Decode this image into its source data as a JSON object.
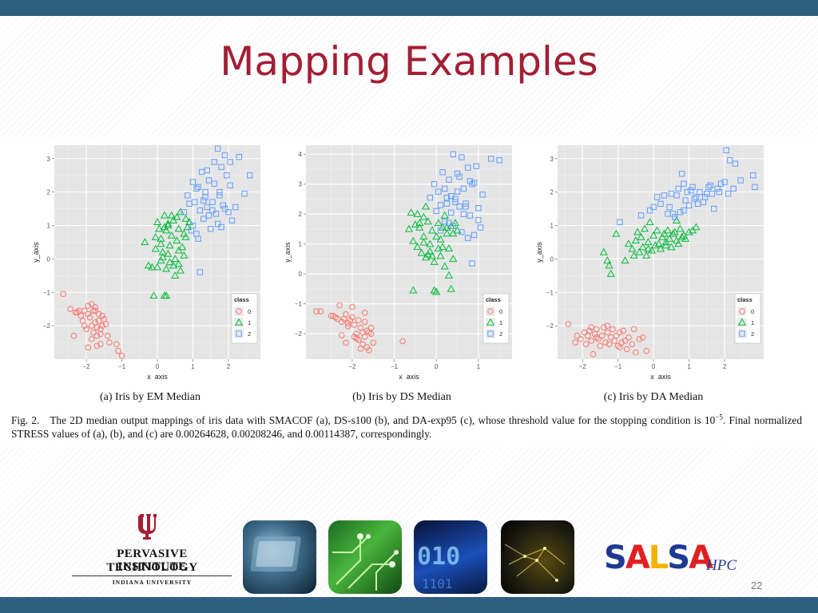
{
  "slide": {
    "title": "Mapping Examples",
    "page_number": "22",
    "figure_caption_prefix": "Fig. 2.",
    "figure_caption_part1": "The 2D median output mappings of iris data with SMACOF (a), DS-s100 (b), and DA-exp95 (c), whose threshold value for the stopping condition is 10",
    "figure_caption_exponent": "−5",
    "figure_caption_part2": ". Final normalized STRESS values of (a), (b), and (c) are 0.00264628, 0.00208246, and 0.00114387, correspondingly."
  },
  "logos": {
    "pti_line1": "PERVASIVE TECHNOLOGY",
    "pti_line2": "INSTITUTE",
    "pti_line3": "INDIANA UNIVERSITY",
    "salsa_letters": [
      "S",
      "A",
      "L",
      "S",
      "A"
    ],
    "salsa_suffix": "HPC",
    "colors": {
      "iu_crimson": "#a31f34",
      "salsa_blue": "#1f3a93",
      "salsa_red": "#e02020",
      "salsa_yellow": "#f2b200"
    }
  },
  "theme": {
    "title_color": "#a31f34",
    "bar_color": "#2e5f80",
    "class_colors": [
      "#f8766d",
      "#00ba38",
      "#619cff"
    ]
  },
  "chart_data": [
    {
      "type": "scatter",
      "title": "",
      "caption": "(a) Iris by EM Median",
      "xlabel": "x_axis",
      "ylabel": "y_axis",
      "xlim": [
        -2.9,
        2.9
      ],
      "ylim": [
        -3.0,
        3.4
      ],
      "xticks": [
        "-2",
        "-1",
        "0",
        "1",
        "2"
      ],
      "yticks": [
        "-2",
        "-1",
        "0",
        "1",
        "2",
        "3"
      ],
      "legend": {
        "title": "class",
        "placement": "right-bottom",
        "labels": [
          "0",
          "1",
          "2"
        ],
        "shapes": [
          "circle",
          "triangle",
          "square"
        ]
      },
      "grid": true,
      "series": [
        {
          "name": "0",
          "shape": "circle",
          "color": "#f8766d",
          "x": [
            -2.65,
            -2.45,
            -2.35,
            -2.25,
            -2.2,
            -2.15,
            -2.1,
            -2.05,
            -2.0,
            -1.95,
            -1.95,
            -1.9,
            -1.85,
            -1.85,
            -1.8,
            -1.8,
            -1.75,
            -1.75,
            -1.7,
            -1.7,
            -1.65,
            -1.65,
            -1.6,
            -1.6,
            -1.55,
            -1.55,
            -1.5,
            -1.45,
            -1.4,
            -1.35,
            -1.95,
            -2.3,
            -1.85,
            -1.7,
            -1.15,
            -1.0,
            -1.1,
            -2.05,
            -1.75,
            -1.6
          ],
          "y": [
            -1.05,
            -1.5,
            -2.3,
            -1.6,
            -1.55,
            -1.7,
            -1.85,
            -1.55,
            -2.1,
            -1.65,
            -1.4,
            -1.75,
            -2.0,
            -1.35,
            -1.55,
            -2.2,
            -1.9,
            -1.45,
            -2.05,
            -2.3,
            -1.65,
            -1.85,
            -2.1,
            -2.55,
            -1.7,
            -2.0,
            -1.8,
            -1.95,
            -2.3,
            -2.5,
            -2.65,
            -1.6,
            -2.4,
            -2.6,
            -2.55,
            -2.9,
            -2.75,
            -2.0,
            -1.55,
            -2.25
          ]
        },
        {
          "name": "1",
          "shape": "triangle",
          "color": "#00ba38",
          "x": [
            -0.35,
            -0.25,
            -0.15,
            -0.05,
            0.0,
            0.05,
            0.1,
            0.1,
            0.15,
            0.2,
            0.25,
            0.25,
            0.3,
            0.35,
            0.4,
            0.45,
            0.5,
            0.55,
            0.6,
            0.6,
            0.65,
            0.7,
            0.75,
            0.8,
            0.85,
            0.9,
            -0.1,
            0.0,
            0.2,
            0.35,
            0.15,
            0.5,
            -0.05,
            0.3,
            0.65,
            0.4,
            0.55,
            0.75,
            0.2,
            0.45,
            0.1,
            0.6,
            0.3,
            0.8,
            0.25
          ],
          "y": [
            0.5,
            -0.2,
            -0.25,
            0.3,
            1.1,
            0.9,
            0.6,
            -0.05,
            0.2,
            1.3,
            0.85,
            -0.3,
            1.05,
            0.4,
            0.7,
            1.15,
            0.0,
            0.55,
            -0.15,
            0.9,
            1.4,
            0.35,
            0.75,
            1.2,
            0.95,
            1.1,
            -1.1,
            -0.25,
            -1.1,
            -0.1,
            0.05,
            -0.5,
            0.65,
            1.0,
            -0.35,
            1.3,
            1.25,
            0.1,
            0.95,
            -0.2,
            0.45,
            0.25,
            0.15,
            0.65,
            -1.1
          ]
        },
        {
          "name": "2",
          "shape": "square",
          "color": "#619cff",
          "x": [
            0.75,
            0.85,
            0.95,
            1.0,
            1.05,
            1.1,
            1.15,
            1.2,
            1.25,
            1.3,
            1.35,
            1.4,
            1.45,
            1.5,
            1.55,
            1.6,
            1.65,
            1.7,
            1.75,
            1.8,
            1.85,
            1.9,
            1.95,
            2.0,
            2.05,
            2.1,
            2.2,
            2.3,
            2.45,
            2.6,
            1.0,
            1.15,
            1.3,
            1.45,
            1.6,
            1.75,
            1.9,
            2.05,
            1.2,
            1.4,
            1.55,
            1.7,
            0.9,
            1.1,
            1.35,
            1.8
          ],
          "y": [
            1.4,
            1.9,
            0.85,
            2.3,
            1.7,
            2.1,
            0.6,
            1.45,
            2.6,
            1.2,
            2.0,
            1.55,
            2.35,
            0.9,
            1.7,
            2.25,
            1.35,
            3.3,
            2.0,
            2.75,
            1.6,
            3.1,
            2.5,
            1.4,
            2.9,
            1.15,
            1.55,
            3.05,
            1.95,
            2.5,
            1.0,
            2.15,
            1.75,
            1.3,
            2.9,
            1.9,
            1.5,
            2.2,
            -0.4,
            2.65,
            1.45,
            1.05,
            1.65,
            0.75,
            1.85,
            0.95
          ]
        }
      ]
    },
    {
      "type": "scatter",
      "title": "",
      "caption": "(b) Iris by DS Median",
      "xlabel": "x_axis",
      "ylabel": "y_axis",
      "xlim": [
        -3.1,
        1.8
      ],
      "ylim": [
        -2.85,
        4.3
      ],
      "xticks": [
        "-2",
        "-1",
        "0",
        "1"
      ],
      "yticks": [
        "-2",
        "-1",
        "0",
        "1",
        "2",
        "3",
        "4"
      ],
      "legend": {
        "title": "class",
        "placement": "right-bottom",
        "labels": [
          "0",
          "1",
          "2"
        ],
        "shapes": [
          "circle",
          "triangle",
          "square"
        ]
      },
      "grid": true,
      "series": [
        {
          "name": "0",
          "shape": "circle",
          "color": "#f8766d",
          "x": [
            -2.85,
            -2.75,
            -2.5,
            -2.45,
            -2.35,
            -2.3,
            -2.25,
            -2.2,
            -2.15,
            -2.1,
            -2.05,
            -2.0,
            -1.95,
            -1.9,
            -1.85,
            -1.85,
            -1.8,
            -1.75,
            -1.7,
            -1.7,
            -1.65,
            -1.6,
            -1.55,
            -1.5,
            -2.25,
            -2.15,
            -1.95,
            -1.8,
            -1.65,
            -0.8,
            -2.4,
            -2.0,
            -1.75,
            -1.6,
            -2.1,
            -1.9,
            -1.55,
            -1.7
          ],
          "y": [
            -1.25,
            -1.25,
            -1.4,
            -1.4,
            -1.5,
            -1.05,
            -1.6,
            -1.5,
            -1.35,
            -1.75,
            -1.55,
            -1.45,
            -1.7,
            -2.0,
            -1.55,
            -2.2,
            -1.8,
            -2.35,
            -1.6,
            -2.1,
            -1.9,
            -2.55,
            -1.8,
            -2.3,
            -2.05,
            -2.3,
            -2.1,
            -2.5,
            -2.45,
            -2.25,
            -1.45,
            -1.1,
            -1.95,
            -1.95,
            -1.65,
            -2.15,
            -2.0,
            -1.3
          ]
        },
        {
          "name": "1",
          "shape": "triangle",
          "color": "#00ba38",
          "x": [
            -0.65,
            -0.6,
            -0.55,
            -0.5,
            -0.45,
            -0.4,
            -0.35,
            -0.3,
            -0.3,
            -0.25,
            -0.2,
            -0.2,
            -0.15,
            -0.1,
            -0.05,
            0.0,
            0.05,
            0.1,
            0.15,
            0.2,
            0.25,
            0.3,
            0.35,
            0.4,
            0.45,
            0.5,
            -0.55,
            -0.45,
            -0.3,
            -0.15,
            0.0,
            0.1,
            0.3,
            0.4,
            -0.25,
            -0.05,
            0.15,
            0.35,
            -0.1,
            0.2,
            -0.4,
            0.05,
            0.25
          ],
          "y": [
            1.5,
            2.05,
            1.1,
            1.65,
            0.9,
            1.55,
            0.7,
            1.9,
            1.25,
            0.55,
            1.75,
            0.65,
            1.0,
            1.45,
            0.4,
            1.25,
            1.7,
            0.6,
            1.55,
            0.25,
            1.35,
            0.85,
            1.6,
            0.5,
            1.7,
            1.45,
            -0.55,
            2.0,
            1.05,
            0.75,
            -0.6,
            1.15,
            -0.05,
            1.35,
            2.25,
            -0.55,
            0.9,
            -0.5,
            0.6,
            1.95,
            1.7,
            0.85,
            1.55
          ]
        },
        {
          "name": "2",
          "shape": "square",
          "color": "#619cff",
          "x": [
            -0.15,
            -0.05,
            0.0,
            0.05,
            0.1,
            0.15,
            0.2,
            0.25,
            0.3,
            0.35,
            0.4,
            0.45,
            0.5,
            0.55,
            0.6,
            0.65,
            0.7,
            0.75,
            0.8,
            0.85,
            0.9,
            0.95,
            1.0,
            1.05,
            1.1,
            1.3,
            1.5,
            0.3,
            0.45,
            0.6,
            0.75,
            0.9,
            0.2,
            0.35,
            0.55,
            0.7,
            0.85,
            0.4,
            0.65,
            0.8,
            0.1,
            0.5,
            1.0,
            0.25
          ],
          "y": [
            2.55,
            3.0,
            2.1,
            2.75,
            2.3,
            3.4,
            1.75,
            2.55,
            3.15,
            2.05,
            4.0,
            2.5,
            3.35,
            2.25,
            3.9,
            2.85,
            2.35,
            3.55,
            1.95,
            3.0,
            1.3,
            3.6,
            2.2,
            1.55,
            2.65,
            3.85,
            3.8,
            1.7,
            2.4,
            1.4,
            1.2,
            3.05,
            2.85,
            2.6,
            3.25,
            2.25,
            0.35,
            1.6,
            2.0,
            3.1,
            1.45,
            2.75,
            1.8,
            2.35
          ]
        }
      ]
    },
    {
      "type": "scatter",
      "title": "",
      "caption": "(c) Iris by DA Median",
      "xlabel": "x_axis",
      "ylabel": "y_axis",
      "xlim": [
        -2.7,
        3.1
      ],
      "ylim": [
        -3.0,
        3.4
      ],
      "xticks": [
        "-2",
        "-1",
        "0",
        "1",
        "2"
      ],
      "yticks": [
        "-2",
        "-1",
        "0",
        "1",
        "2",
        "3"
      ],
      "legend": {
        "title": "class",
        "placement": "right-bottom",
        "labels": [
          "0",
          "1",
          "2"
        ],
        "shapes": [
          "circle",
          "triangle",
          "square"
        ]
      },
      "grid": true,
      "series": [
        {
          "name": "0",
          "shape": "circle",
          "color": "#f8766d",
          "x": [
            -2.4,
            -2.2,
            -2.15,
            -2.05,
            -1.95,
            -1.9,
            -1.85,
            -1.8,
            -1.75,
            -1.7,
            -1.65,
            -1.6,
            -1.55,
            -1.5,
            -1.45,
            -1.4,
            -1.35,
            -1.3,
            -1.25,
            -1.2,
            -1.15,
            -1.1,
            -1.05,
            -1.0,
            -0.95,
            -0.9,
            -0.85,
            -0.8,
            -0.75,
            -0.7,
            -0.6,
            -0.5,
            -0.4,
            -0.3,
            -0.2,
            -1.75,
            -1.3,
            -0.55,
            -0.95,
            -1.6
          ],
          "y": [
            -1.95,
            -2.5,
            -2.3,
            -2.4,
            -2.2,
            -2.55,
            -2.3,
            -2.15,
            -2.45,
            -2.85,
            -2.25,
            -2.1,
            -2.4,
            -2.6,
            -2.3,
            -2.05,
            -2.5,
            -2.2,
            -2.55,
            -2.35,
            -2.1,
            -2.45,
            -2.3,
            -2.6,
            -2.2,
            -2.5,
            -2.15,
            -2.45,
            -2.7,
            -2.35,
            -2.55,
            -2.8,
            -2.4,
            -2.35,
            -2.75,
            -2.05,
            -2.0,
            -2.1,
            -2.65,
            -2.35
          ]
        },
        {
          "name": "1",
          "shape": "triangle",
          "color": "#00ba38",
          "x": [
            -1.4,
            -1.3,
            -1.25,
            -1.2,
            -1.05,
            -0.8,
            -0.7,
            -0.6,
            -0.5,
            -0.45,
            -0.4,
            -0.35,
            -0.3,
            -0.25,
            -0.2,
            -0.15,
            -0.1,
            -0.05,
            0.0,
            0.05,
            0.1,
            0.15,
            0.2,
            0.25,
            0.3,
            0.35,
            0.4,
            0.45,
            0.5,
            0.55,
            0.6,
            0.65,
            0.7,
            0.75,
            0.8,
            0.85,
            0.9,
            1.0,
            1.1,
            1.2,
            -0.15,
            0.35,
            0.65,
            -0.55
          ],
          "y": [
            0.2,
            -0.05,
            -0.2,
            -0.45,
            0.75,
            -0.05,
            0.45,
            0.3,
            0.55,
            0.8,
            0.2,
            0.65,
            0.35,
            0.9,
            0.1,
            0.5,
            1.1,
            0.25,
            0.7,
            0.4,
            0.85,
            0.45,
            0.3,
            0.65,
            0.75,
            0.5,
            0.85,
            0.6,
            0.35,
            0.75,
            0.8,
            0.55,
            0.45,
            0.9,
            0.65,
            0.7,
            0.6,
            0.8,
            0.85,
            0.95,
            0.3,
            0.4,
            1.15,
            0.1
          ]
        },
        {
          "name": "2",
          "shape": "square",
          "color": "#619cff",
          "x": [
            -0.95,
            -0.35,
            -0.1,
            0.0,
            0.1,
            0.2,
            0.3,
            0.4,
            0.5,
            0.6,
            0.7,
            0.75,
            0.8,
            0.85,
            0.9,
            0.95,
            1.0,
            1.1,
            1.2,
            1.3,
            1.4,
            1.5,
            1.6,
            1.7,
            1.8,
            1.9,
            2.0,
            2.05,
            2.1,
            2.15,
            2.25,
            2.3,
            2.8,
            2.85,
            0.45,
            0.65,
            0.85,
            1.05,
            1.25,
            1.45,
            1.65,
            1.85,
            0.55,
            1.15,
            1.55,
            2.45
          ],
          "y": [
            1.1,
            1.3,
            1.45,
            1.55,
            1.85,
            1.65,
            1.9,
            1.35,
            1.95,
            1.25,
            2.1,
            1.4,
            2.55,
            2.25,
            1.75,
            2.0,
            1.6,
            2.15,
            1.85,
            2.0,
            1.7,
            1.95,
            2.2,
            1.5,
            2.1,
            2.25,
            2.3,
            3.25,
            1.95,
            2.95,
            2.1,
            2.85,
            2.5,
            2.15,
            1.55,
            1.9,
            1.45,
            2.05,
            1.65,
            1.85,
            1.95,
            2.0,
            1.35,
            1.8,
            2.15,
            2.35
          ]
        }
      ]
    }
  ]
}
